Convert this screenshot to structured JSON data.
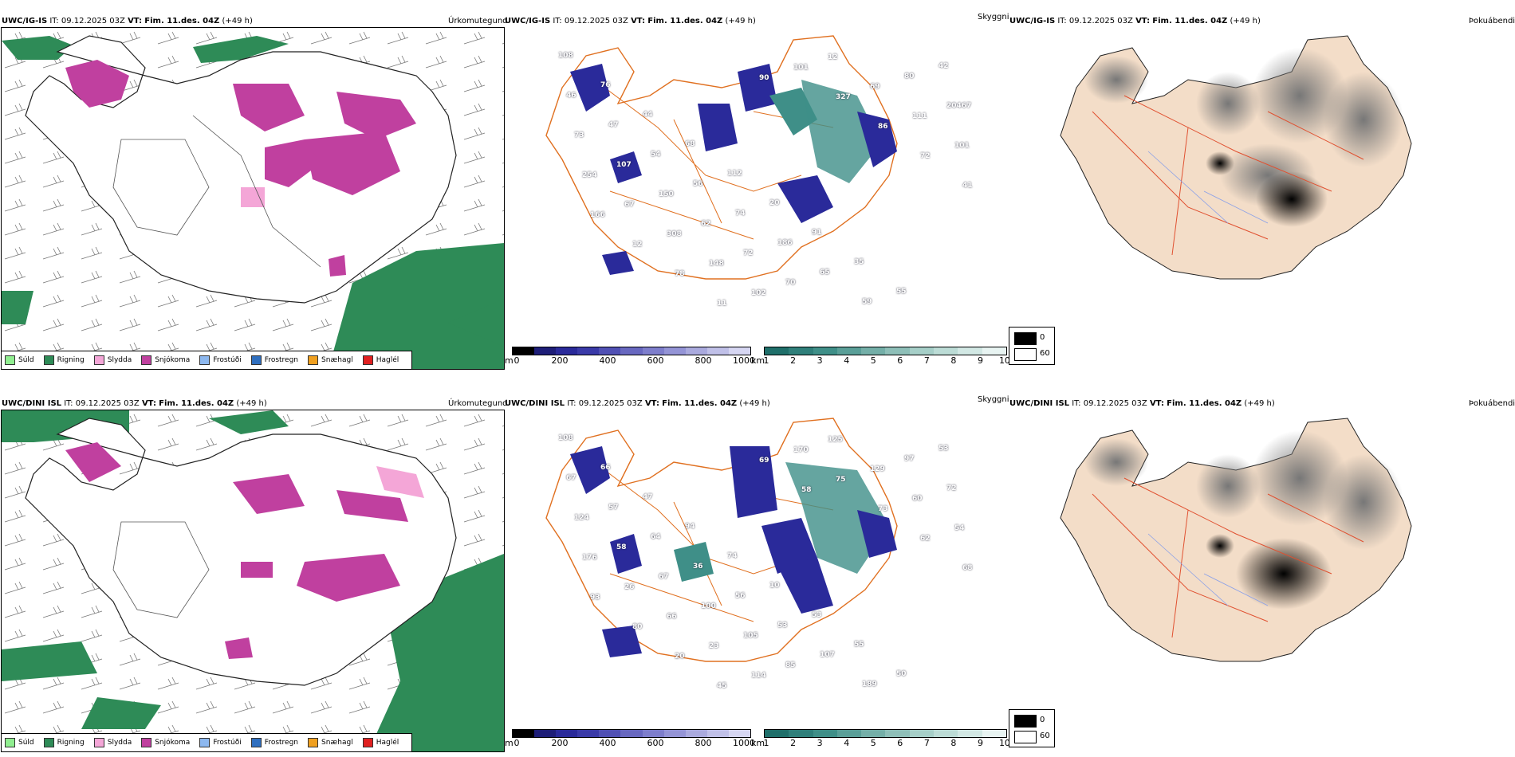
{
  "rows": [
    {
      "header": {
        "model": "UWC/IG-IS",
        "it_label": "IT:",
        "it_value": "09.12.2025 03Z",
        "vt_label": "VT:",
        "vt_value": "Fim. 11.des. 04Z",
        "offset": "(+49 h)"
      },
      "titles": {
        "precip": "Úrkomutegund",
        "visibility": "Skyggni",
        "fog": "Þokuábendi"
      },
      "labels": [
        "108",
        "76",
        "44",
        "68",
        "112",
        "20",
        "91",
        "35",
        "55",
        "42",
        "46",
        "47",
        "54",
        "56",
        "74",
        "186",
        "65",
        "59",
        "80",
        "20467",
        "73",
        "107",
        "150",
        "62",
        "72",
        "70",
        "12",
        "69",
        "111",
        "101",
        "254",
        "67",
        "308",
        "148",
        "102",
        "101",
        "327",
        "86",
        "72",
        "41",
        "166",
        "12",
        "78",
        "11",
        "90"
      ]
    },
    {
      "header": {
        "model": "UWC/DINI ISL",
        "it_label": "IT:",
        "it_value": "09.12.2025 03Z",
        "vt_label": "VT:",
        "vt_value": "Fim. 11.des. 04Z",
        "offset": "(+49 h)"
      },
      "titles": {
        "precip": "Úrkomutegund",
        "visibility": "Skyggni",
        "fog": "Þokuábendi"
      },
      "labels": [
        "108",
        "66",
        "47",
        "94",
        "74",
        "10",
        "53",
        "55",
        "50",
        "53",
        "67",
        "57",
        "64",
        "36",
        "56",
        "53",
        "107",
        "189",
        "97",
        "72",
        "124",
        "58",
        "67",
        "100",
        "105",
        "85",
        "125",
        "129",
        "60",
        "54",
        "176",
        "26",
        "66",
        "23",
        "114",
        "170",
        "75",
        "73",
        "62",
        "68",
        "93",
        "80",
        "20",
        "45",
        "69",
        "58"
      ]
    }
  ],
  "precip_legend": [
    {
      "label": "Súld",
      "color": "#90ee90"
    },
    {
      "label": "Rigning",
      "color": "#2e8b57"
    },
    {
      "label": "Slydda",
      "color": "#f4a6d7"
    },
    {
      "label": "Snjókoma",
      "color": "#c0409f"
    },
    {
      "label": "Frostúði",
      "color": "#8db8ef"
    },
    {
      "label": "Frostregn",
      "color": "#2f6fbf"
    },
    {
      "label": "Snæhagl",
      "color": "#f0a020"
    },
    {
      "label": "Haglél",
      "color": "#e02020"
    }
  ],
  "height_scale": {
    "unit": "m",
    "ticks": [
      "0",
      "200",
      "400",
      "600",
      "800",
      "1000"
    ],
    "colors": [
      "#000000",
      "#1e1e78",
      "#2a2a9a",
      "#3a3aa8",
      "#5050b4",
      "#6868c0",
      "#7e7ecc",
      "#9494d6",
      "#aaaade",
      "#c0c0e8",
      "#d6d6f2"
    ]
  },
  "vis_scale": {
    "unit": "km",
    "ticks": [
      "1",
      "2",
      "3",
      "4",
      "5",
      "6",
      "7",
      "8",
      "9",
      "10"
    ],
    "colors": [
      "#1f6f6a",
      "#2f7f7a",
      "#3f8f88",
      "#5a9f98",
      "#74afa8",
      "#8ebfb8",
      "#a6cfc8",
      "#bcdcd6",
      "#d2e8e4",
      "#e8f4f2"
    ]
  },
  "fog_key": [
    {
      "value": "0",
      "color": "#000000"
    },
    {
      "value": "60",
      "color": "#ffffff"
    }
  ],
  "colors": {
    "rain": "#2e8b57",
    "snow": "#c0409f",
    "sleet": "#f4a6d7",
    "height": "#2a2a9a",
    "teal": "#3f8f88",
    "road": "#e07020",
    "fogland": "#f3ddc8",
    "fogroad": "#e05030"
  }
}
